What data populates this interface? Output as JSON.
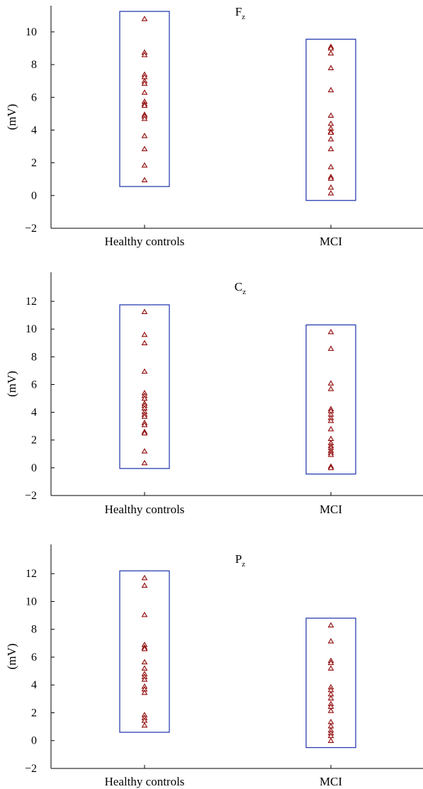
{
  "colors": {
    "box_stroke": "#2a3fb0",
    "marker_stroke": "#8b0000",
    "marker_fill": "#f3dede",
    "axis": "#000000"
  },
  "chart_data": [
    {
      "type": "scatter",
      "title": "F",
      "title_subscript": "z",
      "ylabel": "(mV)",
      "categories": [
        "Healthy controls",
        "MCI"
      ],
      "ylim": [
        -2,
        11.6
      ],
      "yticks": [
        -2,
        0,
        2,
        4,
        6,
        8,
        10
      ],
      "boxes": [
        {
          "category": "Healthy controls",
          "min": 0.55,
          "max": 11.25
        },
        {
          "category": "MCI",
          "min": -0.3,
          "max": 9.55
        }
      ],
      "series": [
        {
          "category": "Healthy controls",
          "values": [
            10.8,
            8.75,
            8.6,
            7.4,
            7.25,
            7.0,
            6.85,
            6.3,
            5.75,
            5.6,
            5.5,
            4.95,
            4.85,
            4.7,
            3.65,
            2.85,
            1.85,
            0.95
          ]
        },
        {
          "category": "MCI",
          "values": [
            9.1,
            9.0,
            8.7,
            7.8,
            6.45,
            4.9,
            4.4,
            4.1,
            3.9,
            3.85,
            3.45,
            2.85,
            1.75,
            1.15,
            1.05,
            0.5,
            0.15
          ]
        }
      ],
      "grid": false
    },
    {
      "type": "scatter",
      "title": "C",
      "title_subscript": "z",
      "ylabel": "(mV)",
      "categories": [
        "Healthy controls",
        "MCI"
      ],
      "ylim": [
        -2,
        14.1
      ],
      "yticks": [
        -2,
        0,
        2,
        4,
        6,
        8,
        10,
        12
      ],
      "boxes": [
        {
          "category": "Healthy controls",
          "min": -0.05,
          "max": 11.75
        },
        {
          "category": "MCI",
          "min": -0.45,
          "max": 10.3
        }
      ],
      "series": [
        {
          "category": "Healthy controls",
          "values": [
            11.25,
            9.6,
            9.0,
            6.95,
            5.4,
            5.2,
            5.0,
            4.65,
            4.5,
            4.3,
            4.05,
            3.85,
            3.7,
            3.25,
            3.1,
            2.6,
            2.5,
            1.2,
            0.35
          ]
        },
        {
          "category": "MCI",
          "values": [
            9.8,
            8.6,
            6.1,
            5.7,
            4.25,
            4.1,
            3.85,
            3.6,
            3.4,
            2.8,
            2.1,
            1.8,
            1.6,
            1.45,
            1.25,
            1.1,
            0.95,
            0.1,
            0.0
          ]
        }
      ],
      "grid": false
    },
    {
      "type": "scatter",
      "title": "P",
      "title_subscript": "z",
      "ylabel": "(mV)",
      "categories": [
        "Healthy controls",
        "MCI"
      ],
      "ylim": [
        -2,
        14.1
      ],
      "yticks": [
        -2,
        0,
        2,
        4,
        6,
        8,
        10,
        12
      ],
      "boxes": [
        {
          "category": "Healthy controls",
          "min": 0.6,
          "max": 12.2
        },
        {
          "category": "MCI",
          "min": -0.5,
          "max": 8.8
        }
      ],
      "series": [
        {
          "category": "Healthy controls",
          "values": [
            11.7,
            11.15,
            9.05,
            6.9,
            6.7,
            6.6,
            5.65,
            5.2,
            4.8,
            4.6,
            4.4,
            3.9,
            3.7,
            3.45,
            1.85,
            1.65,
            1.45,
            1.1
          ]
        },
        {
          "category": "MCI",
          "values": [
            8.3,
            7.15,
            5.75,
            5.6,
            5.2,
            3.85,
            3.65,
            3.35,
            3.05,
            2.65,
            2.45,
            2.15,
            1.35,
            1.05,
            0.75,
            0.55,
            0.35,
            0.0
          ]
        }
      ],
      "grid": false
    }
  ]
}
